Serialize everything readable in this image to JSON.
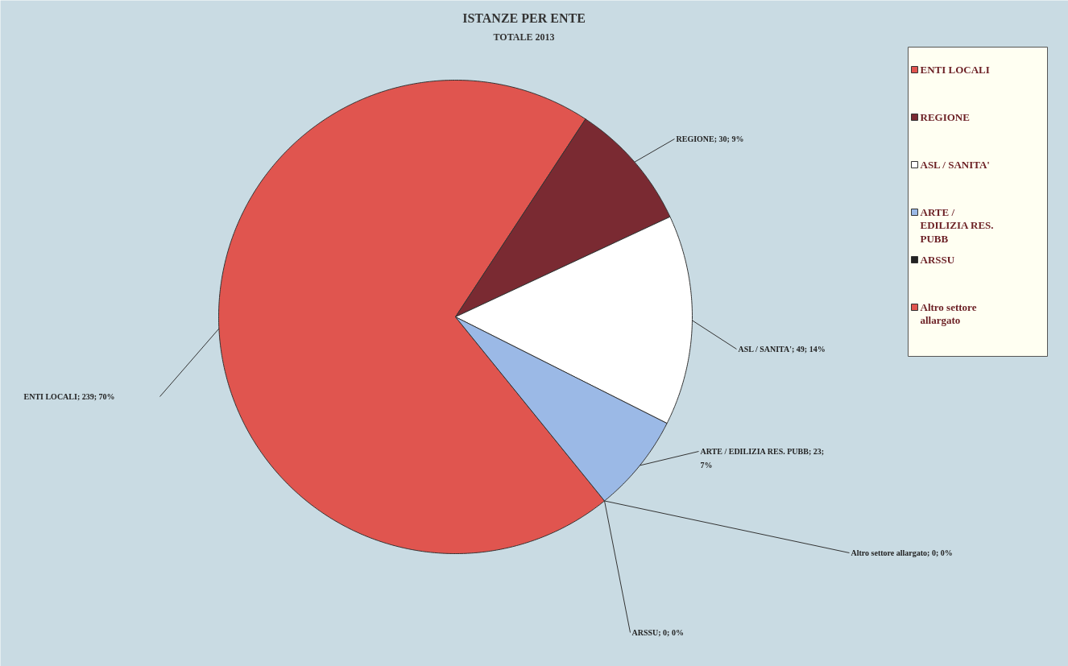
{
  "chart_data": {
    "type": "pie",
    "title": "ISTANZE PER ENTE",
    "subtitle": "TOTALE 2013",
    "categories": [
      "ENTI LOCALI",
      "REGIONE",
      "ASL / SANITA'",
      "ARTE / EDILIZIA RES. PUBB",
      "ARSSU",
      "Altro settore allargato"
    ],
    "values": [
      239,
      30,
      49,
      23,
      0,
      0
    ],
    "colors": [
      "#e0554f",
      "#7a2a32",
      "#ffffff",
      "#9bb9e6",
      "#222222",
      "#e0554f"
    ],
    "value_labels": [
      "ENTI LOCALI; 239; 70%",
      "REGIONE; 30; 9%",
      "ASL / SANITA'; 49; 14%",
      "ARTE / EDILIZIA RES. PUBB; 23; 7%",
      "ARSSU; 0; 0%",
      "Altro settore allargato; 0; 0%"
    ],
    "legend": "right"
  }
}
